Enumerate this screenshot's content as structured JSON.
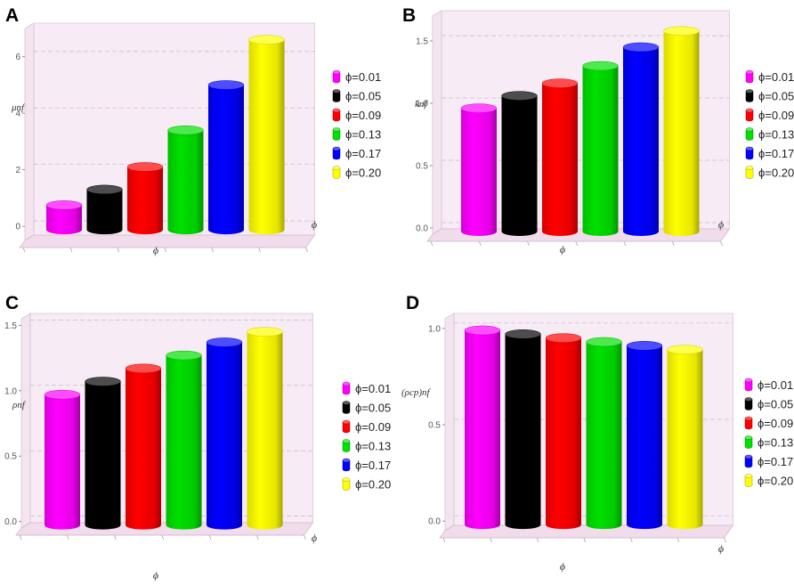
{
  "chart_data": [
    {
      "panel": "A",
      "type": "bar",
      "style": "3d-cylinder",
      "title": "",
      "ylabel": "μnf",
      "xlabel": "ϕ",
      "ylim": [
        -0.5,
        7
      ],
      "yticks": [
        0,
        2,
        4,
        6
      ],
      "yticklabels": [
        "0",
        "2",
        "4",
        "6"
      ],
      "categories": [
        "ϕ=0.01",
        "ϕ=0.05",
        "ϕ=0.09",
        "ϕ=0.13",
        "ϕ=0.17",
        "ϕ=0.20"
      ],
      "values": [
        0.75,
        1.3,
        2.1,
        3.4,
        5.0,
        6.6
      ],
      "colors": [
        "#ff00ff",
        "#000000",
        "#ff0000",
        "#00e000",
        "#0000ff",
        "#ffff00"
      ],
      "grid": true,
      "legend_position": "right"
    },
    {
      "panel": "B",
      "type": "bar",
      "style": "3d-cylinder",
      "title": "",
      "ylabel": "knf",
      "xlabel": "ϕ",
      "ylim": [
        -0.05,
        1.7
      ],
      "yticks": [
        0.0,
        0.5,
        1.0,
        1.5
      ],
      "yticklabels": [
        "0.0",
        "0.5",
        "1.0",
        "1.5"
      ],
      "categories": [
        "ϕ=0.01",
        "ϕ=0.05",
        "ϕ=0.09",
        "ϕ=0.13",
        "ϕ=0.17",
        "ϕ=0.20"
      ],
      "values": [
        0.96,
        1.06,
        1.16,
        1.3,
        1.45,
        1.58
      ],
      "colors": [
        "#ff00ff",
        "#000000",
        "#ff0000",
        "#00e000",
        "#0000ff",
        "#ffff00"
      ],
      "grid": true,
      "legend_position": "right"
    },
    {
      "panel": "C",
      "type": "bar",
      "style": "3d-cylinder",
      "title": "",
      "ylabel": "ρnf",
      "xlabel": "ϕ",
      "ylim": [
        -0.05,
        1.55
      ],
      "yticks": [
        0.0,
        0.5,
        1.0,
        1.5
      ],
      "yticklabels": [
        "0.0",
        "0.5",
        "1.0",
        "1.5"
      ],
      "categories": [
        "ϕ=0.01",
        "ϕ=0.05",
        "ϕ=0.09",
        "ϕ=0.13",
        "ϕ=0.17",
        "ϕ=0.20"
      ],
      "values": [
        0.97,
        1.07,
        1.17,
        1.27,
        1.37,
        1.45
      ],
      "colors": [
        "#ff00ff",
        "#000000",
        "#ff0000",
        "#00e000",
        "#0000ff",
        "#ffff00"
      ],
      "grid": true,
      "legend_position": "right"
    },
    {
      "panel": "D",
      "type": "bar",
      "style": "3d-cylinder",
      "title": "",
      "ylabel": "(ρcp)nf",
      "xlabel": "ϕ",
      "ylim": [
        -0.05,
        1.05
      ],
      "yticks": [
        0.0,
        0.5,
        1.0
      ],
      "yticklabels": [
        "0.0",
        "0.5",
        "1.0"
      ],
      "categories": [
        "ϕ=0.01",
        "ϕ=0.05",
        "ϕ=0.09",
        "ϕ=0.13",
        "ϕ=0.17",
        "ϕ=0.20"
      ],
      "values": [
        0.99,
        0.97,
        0.95,
        0.93,
        0.91,
        0.89
      ],
      "colors": [
        "#ff00ff",
        "#000000",
        "#ff0000",
        "#00e000",
        "#0000ff",
        "#ffff00"
      ],
      "grid": true,
      "legend_position": "right"
    }
  ]
}
